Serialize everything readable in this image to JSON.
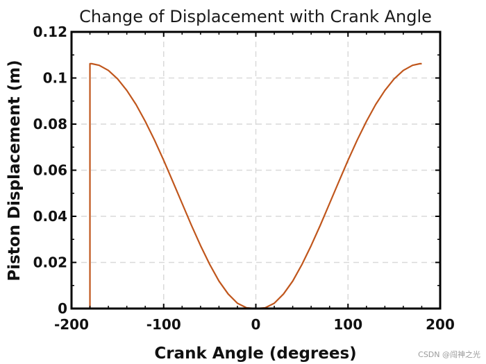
{
  "chart_data": {
    "type": "line",
    "title": "Change of Displacement with Crank Angle",
    "xlabel": "Crank Angle (degrees)",
    "ylabel": "Piston Displacement (m)",
    "xlim": [
      -200,
      200
    ],
    "ylim": [
      0,
      0.12
    ],
    "xticks": [
      -200,
      -100,
      0,
      100,
      200
    ],
    "xtick_labels": [
      "-200",
      "-100",
      "0",
      "100",
      "200"
    ],
    "yticks": [
      0,
      0.02,
      0.04,
      0.06,
      0.08,
      0.1,
      0.12
    ],
    "ytick_labels": [
      "0",
      "0.02",
      "0.04",
      "0.06",
      "0.08",
      "0.1",
      "0.12"
    ],
    "grid": true,
    "line_color": "#C0561C",
    "series": [
      {
        "x": [
          -180,
          -180,
          -178,
          -170,
          -160,
          -150,
          -140,
          -130,
          -120,
          -110,
          -100,
          -90,
          -80,
          -70,
          -60,
          -50,
          -40,
          -30,
          -20,
          -10,
          0,
          10,
          20,
          30,
          40,
          50,
          60,
          70,
          80,
          90,
          100,
          110,
          120,
          130,
          140,
          150,
          160,
          170,
          178,
          180
        ],
        "y": [
          0,
          0.1062,
          0.1062,
          0.1055,
          0.1033,
          0.0996,
          0.0946,
          0.0885,
          0.0812,
          0.0731,
          0.0643,
          0.055,
          0.0456,
          0.0362,
          0.0273,
          0.0191,
          0.0119,
          0.0063,
          0.0023,
          0.0003,
          0,
          0.0003,
          0.0023,
          0.0063,
          0.0119,
          0.0191,
          0.0273,
          0.0362,
          0.0456,
          0.055,
          0.0643,
          0.0731,
          0.0812,
          0.0885,
          0.0946,
          0.0996,
          0.1033,
          0.1055,
          0.1062,
          0.1062
        ]
      }
    ]
  },
  "watermark": "CSDN @闯神之光"
}
